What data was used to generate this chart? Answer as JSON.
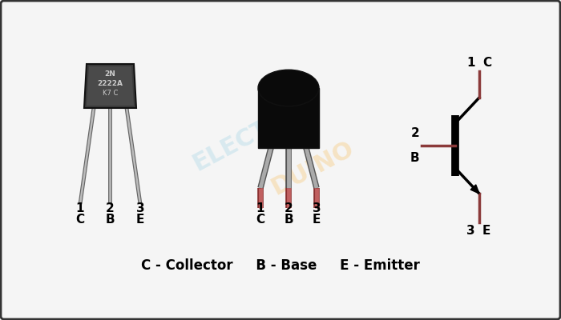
{
  "bg_color": "#f5f5f5",
  "border_color": "#333333",
  "title_bottom": "C - Collector     B - Base     E - Emitter",
  "pin_labels_1": [
    "1",
    "2",
    "3"
  ],
  "pin_letters_1": [
    "C",
    "B",
    "E"
  ],
  "pin_labels_2": [
    "1",
    "2",
    "3"
  ],
  "pin_letters_2": [
    "C",
    "B",
    "E"
  ],
  "wire_color": "#8B3A3A",
  "lead_silver_dark": "#888888",
  "lead_silver_light": "#bbbbbb",
  "lead_red_dark": "#8B3030",
  "lead_red_light": "#c06060",
  "body1_color": "#3a3a3a",
  "body2_black": "#0a0a0a",
  "body2_gray": "#888888",
  "sc_bar_color": "#111111",
  "watermark_blue": "#add8e6",
  "watermark_orange": "#f5c87a"
}
